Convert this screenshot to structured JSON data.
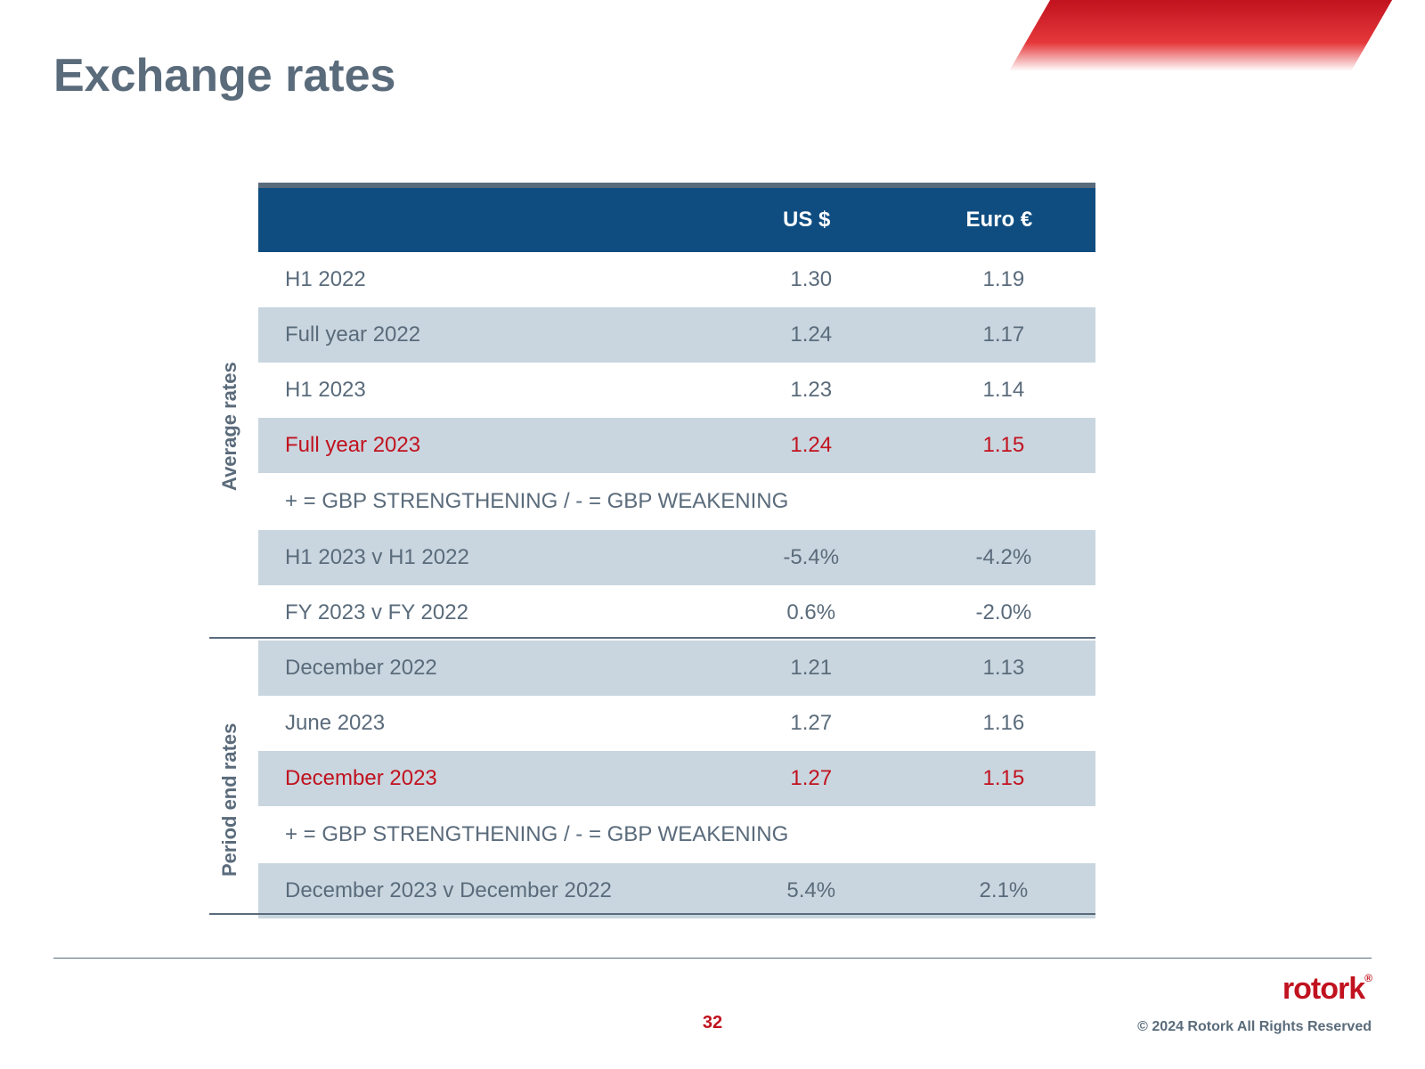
{
  "page": {
    "title": "Exchange rates",
    "page_number": "32",
    "copyright": "© 2024 Rotork All Rights Reserved",
    "brand": "rotork",
    "primary_text_color": "#5a6b7b",
    "highlight_text_color": "#c1121f",
    "header_bg": "#0f4d80",
    "row_alt_bg": "#c9d6df",
    "background": "#ffffff"
  },
  "table": {
    "type": "table",
    "columns": [
      "",
      "US $",
      "Euro €"
    ],
    "column_align": [
      "left",
      "center",
      "center"
    ],
    "sections": [
      {
        "label": "Average rates",
        "rows": [
          {
            "label": "H1 2022",
            "usd": "1.30",
            "eur": "1.19",
            "alt": false
          },
          {
            "label": "Full year 2022",
            "usd": "1.24",
            "eur": "1.17",
            "alt": true
          },
          {
            "label": "H1 2023",
            "usd": "1.23",
            "eur": "1.14",
            "alt": false
          },
          {
            "label": "Full year 2023",
            "usd": "1.24",
            "eur": "1.15",
            "alt": true,
            "highlight": true
          }
        ],
        "note": "+ = GBP STRENGTHENING / - = GBP WEAKENING",
        "comparisons": [
          {
            "label": "H1 2023 v H1 2022",
            "usd": "-5.4%",
            "eur": "-4.2%",
            "alt": true
          },
          {
            "label": "FY 2023 v FY 2022",
            "usd": "0.6%",
            "eur": "-2.0%",
            "alt": false
          }
        ]
      },
      {
        "label": "Period end rates",
        "rows": [
          {
            "label": "December 2022",
            "usd": "1.21",
            "eur": "1.13",
            "alt": true
          },
          {
            "label": "June 2023",
            "usd": "1.27",
            "eur": "1.16",
            "alt": false
          },
          {
            "label": "December 2023",
            "usd": "1.27",
            "eur": "1.15",
            "alt": true,
            "highlight": true
          }
        ],
        "note": "+ = GBP STRENGTHENING / - = GBP WEAKENING",
        "comparisons": [
          {
            "label": "December 2023 v December 2022",
            "usd": "5.4%",
            "eur": "2.1%",
            "alt": true
          }
        ]
      }
    ]
  }
}
